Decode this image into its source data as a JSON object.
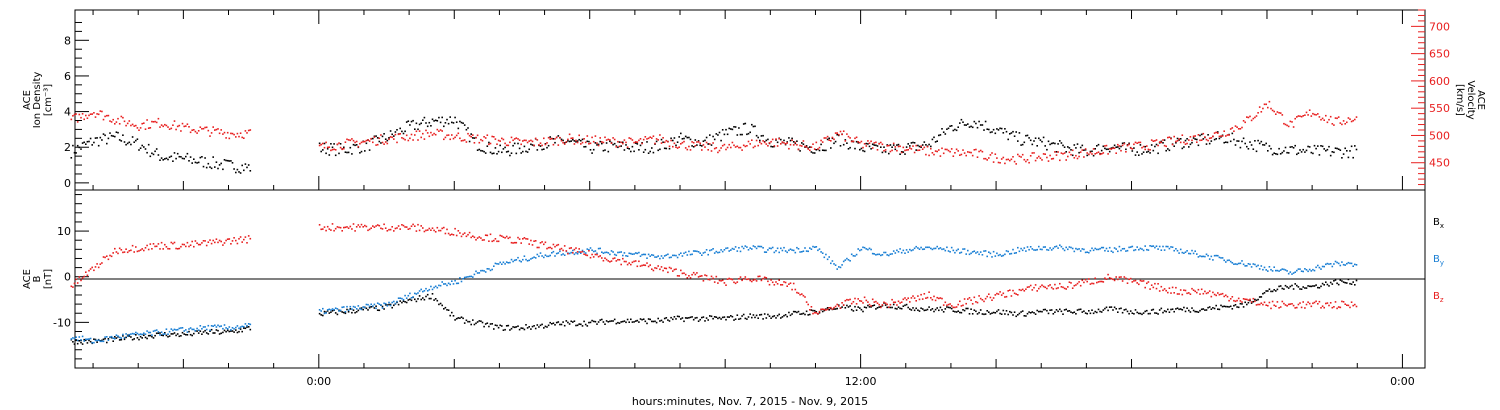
{
  "chart_data": [
    {
      "type": "scatter",
      "panel": "top",
      "ylabel": [
        "ACE",
        "Ion Density"
      ],
      "ylabel_unit": "[cm⁻³]",
      "ylim": [
        -0.4,
        9.7
      ],
      "yticks": [
        0,
        2,
        4,
        6,
        8
      ],
      "y2label": [
        "ACE",
        "Velocity"
      ],
      "y2label_unit": "[km/s]",
      "y2lim": [
        400,
        730
      ],
      "y2ticks": [
        450,
        500,
        550,
        600,
        650,
        700
      ],
      "colors": {
        "density": "#000000",
        "velocity": "#e82020"
      },
      "series": [
        {
          "axis": "left",
          "color": "#000000",
          "x": [
            -5.5,
            -5.0,
            -4.5,
            -4.0,
            -3.5,
            -3.0,
            -2.5,
            -2.0,
            -1.5,
            0.0,
            0.5,
            1.0,
            1.5,
            2.0,
            2.5,
            3.0,
            3.5,
            4.0,
            4.5,
            5.0,
            5.5,
            6.0,
            6.5,
            7.0,
            7.5,
            8.0,
            8.5,
            9.0,
            9.5,
            10.0,
            10.5,
            11.0,
            11.5,
            12.0,
            12.5,
            13.0,
            13.5,
            14.0,
            14.5,
            15.0,
            15.5,
            16.0,
            16.5,
            17.0,
            17.5,
            18.0,
            18.5,
            19.0,
            19.5,
            20.0,
            20.5,
            21.0,
            21.5,
            22.0,
            22.5,
            23.0
          ],
          "values": [
            1.8,
            2.4,
            2.6,
            2.2,
            1.5,
            1.4,
            1.2,
            1.0,
            0.9,
            2.0,
            1.9,
            2.1,
            2.6,
            3.2,
            3.5,
            3.6,
            2.2,
            1.8,
            2.0,
            2.3,
            2.4,
            2.0,
            2.1,
            2.0,
            2.1,
            2.5,
            2.3,
            2.8,
            3.1,
            2.4,
            2.2,
            2.0,
            2.5,
            2.0,
            1.9,
            2.0,
            2.2,
            3.2,
            3.5,
            3.0,
            2.5,
            2.3,
            2.0,
            1.8,
            2.1,
            1.9,
            2.0,
            2.3,
            2.4,
            2.6,
            2.3,
            2.0,
            1.9,
            1.8,
            1.8,
            1.8
          ]
        },
        {
          "axis": "right",
          "color": "#e82020",
          "x": [
            -5.5,
            -5.0,
            -4.5,
            -4.0,
            -3.5,
            -3.0,
            -2.5,
            -2.0,
            -1.5,
            0.0,
            0.5,
            1.0,
            1.5,
            2.0,
            2.5,
            3.0,
            3.5,
            4.0,
            4.5,
            5.0,
            5.5,
            6.0,
            6.5,
            7.0,
            7.5,
            8.0,
            8.5,
            9.0,
            9.5,
            10.0,
            10.5,
            11.0,
            11.5,
            12.0,
            12.5,
            13.0,
            13.5,
            14.0,
            14.5,
            15.0,
            15.5,
            16.0,
            16.5,
            17.0,
            17.5,
            18.0,
            18.5,
            19.0,
            19.5,
            20.0,
            20.5,
            21.0,
            21.5,
            22.0,
            22.5,
            23.0
          ],
          "values": [
            530,
            545,
            530,
            520,
            525,
            515,
            510,
            505,
            505,
            480,
            485,
            490,
            495,
            500,
            505,
            500,
            495,
            492,
            488,
            490,
            495,
            492,
            490,
            488,
            495,
            485,
            480,
            478,
            485,
            490,
            485,
            480,
            505,
            485,
            482,
            478,
            472,
            470,
            468,
            460,
            458,
            462,
            465,
            470,
            475,
            480,
            485,
            492,
            498,
            505,
            525,
            560,
            520,
            545,
            525,
            535
          ]
        }
      ]
    },
    {
      "type": "scatter",
      "panel": "bottom",
      "ylabel": [
        "ACE",
        "B"
      ],
      "ylabel_unit": "[nT]",
      "ylim": [
        -20,
        19
      ],
      "yticks": [
        -10,
        0,
        10
      ],
      "xlabel": "hours:minutes, Nov.  7, 2015 - Nov.  9, 2015",
      "xlim": [
        -5.4,
        24.5
      ],
      "xticks": [
        0,
        12,
        24
      ],
      "xticklabels": [
        "0:00",
        "12:00",
        "0:00"
      ],
      "grid": false,
      "legend": "right",
      "series": [
        {
          "name": "B",
          "sub": "x",
          "color": "#000000",
          "x": [
            -5.5,
            -5.0,
            -4.5,
            -4.0,
            -3.5,
            -3.0,
            -2.5,
            -2.0,
            -1.5,
            0.0,
            0.5,
            1.0,
            1.5,
            2.0,
            2.5,
            3.0,
            3.5,
            4.0,
            4.5,
            5.0,
            5.5,
            6.0,
            6.5,
            7.0,
            7.5,
            8.0,
            8.5,
            9.0,
            9.5,
            10.0,
            10.5,
            11.0,
            11.5,
            12.0,
            12.5,
            13.0,
            13.5,
            14.0,
            14.5,
            15.0,
            15.5,
            16.0,
            16.5,
            17.0,
            17.5,
            18.0,
            18.5,
            19.0,
            19.5,
            20.0,
            20.5,
            21.0,
            21.5,
            22.0,
            22.5,
            23.0
          ],
          "values": [
            -14,
            -14,
            -13.5,
            -13,
            -12.5,
            -12.5,
            -12,
            -12,
            -11,
            -8,
            -7.5,
            -7,
            -6.5,
            -5,
            -4,
            -9,
            -10,
            -11,
            -11,
            -10.5,
            -10,
            -10,
            -9.5,
            -9.5,
            -9.5,
            -9,
            -9,
            -9,
            -8.5,
            -8.5,
            -8,
            -7.5,
            -6.5,
            -7,
            -6,
            -6.5,
            -7,
            -7,
            -7.5,
            -7.5,
            -8,
            -7.5,
            -7.5,
            -7.5,
            -7,
            -7.5,
            -7.5,
            -7,
            -7,
            -6.5,
            -6,
            -3,
            -2,
            -2,
            -1,
            -1
          ]
        },
        {
          "name": "B",
          "sub": "y",
          "color": "#1a7fd4",
          "x": [
            -5.5,
            -5.0,
            -4.5,
            -4.0,
            -3.5,
            -3.0,
            -2.5,
            -2.0,
            -1.5,
            0.0,
            0.5,
            1.0,
            1.5,
            2.0,
            2.5,
            3.0,
            3.5,
            4.0,
            4.5,
            5.0,
            5.5,
            6.0,
            6.5,
            7.0,
            7.5,
            8.0,
            8.5,
            9.0,
            9.5,
            10.0,
            10.5,
            11.0,
            11.5,
            12.0,
            12.5,
            13.0,
            13.5,
            14.0,
            14.5,
            15.0,
            15.5,
            16.0,
            16.5,
            17.0,
            17.5,
            18.0,
            18.5,
            19.0,
            19.5,
            20.0,
            20.5,
            21.0,
            21.5,
            22.0,
            22.5,
            23.0
          ],
          "values": [
            -13,
            -14,
            -13,
            -12.5,
            -12,
            -11.5,
            -11,
            -11,
            -10.5,
            -7.5,
            -7,
            -6.5,
            -6,
            -4,
            -2,
            -1,
            1,
            3,
            4,
            5,
            5.5,
            6,
            5.5,
            5,
            4.5,
            5,
            5.5,
            6,
            6.5,
            6,
            6,
            6.5,
            2,
            6.5,
            5,
            6,
            6.5,
            6,
            5.5,
            5,
            6,
            6.5,
            6.5,
            6,
            6,
            6.5,
            6.5,
            6,
            5,
            4,
            3,
            2,
            1,
            2,
            3,
            3
          ]
        },
        {
          "name": "B",
          "sub": "z",
          "color": "#e82020",
          "x": [
            -5.5,
            -5.0,
            -4.5,
            -4.0,
            -3.5,
            -3.0,
            -2.5,
            -2.0,
            -1.5,
            0.0,
            0.5,
            1.0,
            1.5,
            2.0,
            2.5,
            3.0,
            3.5,
            4.0,
            4.5,
            5.0,
            5.5,
            6.0,
            6.5,
            7.0,
            7.5,
            8.0,
            8.5,
            9.0,
            9.5,
            10.0,
            10.5,
            11.0,
            11.5,
            12.0,
            12.5,
            13.0,
            13.5,
            14.0,
            14.5,
            15.0,
            15.5,
            16.0,
            16.5,
            17.0,
            17.5,
            18.0,
            18.5,
            19.0,
            19.5,
            20.0,
            20.5,
            21.0,
            21.5,
            22.0,
            22.5,
            23.0
          ],
          "values": [
            -2,
            2,
            6,
            6.5,
            7,
            7,
            7.5,
            8,
            8.5,
            11,
            11,
            11,
            11,
            11,
            10.5,
            10,
            9,
            8.5,
            8,
            7,
            6,
            5,
            4,
            3,
            2,
            1,
            0,
            -1,
            0,
            -1,
            -2,
            -8,
            -6,
            -5,
            -6,
            -5,
            -4,
            -6,
            -5,
            -4,
            -3,
            -2,
            -2,
            -1,
            0,
            -1,
            -2,
            -3,
            -3,
            -4,
            -5,
            -6,
            -6,
            -6,
            -6,
            -6
          ]
        }
      ]
    }
  ]
}
